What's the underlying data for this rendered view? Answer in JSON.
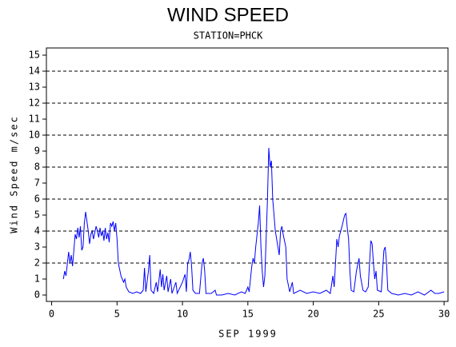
{
  "chart_data": {
    "type": "line",
    "title": "WIND SPEED",
    "subtitle": "STATION=PHCK",
    "x_label": "SEP 1999",
    "y_label": "Wind Speed m/sec",
    "xlim": [
      -0.4,
      30.3
    ],
    "xticks": [
      0,
      5,
      10,
      15,
      20,
      25,
      30
    ],
    "ylim": [
      -0.4,
      15.45
    ],
    "yticks": [
      0,
      1,
      2,
      3,
      4,
      5,
      6,
      7,
      8,
      9,
      10,
      11,
      12,
      13,
      14,
      15
    ],
    "gridlines": [
      2,
      4,
      6,
      8,
      10,
      12,
      14
    ],
    "grid_style": "dashed",
    "series": [
      {
        "color": "#0000ff",
        "x": [
          0.9,
          1.0,
          1.1,
          1.3,
          1.4,
          1.5,
          1.6,
          1.7,
          1.8,
          1.9,
          2.0,
          2.1,
          2.2,
          2.3,
          2.4,
          2.5,
          2.6,
          2.7,
          2.8,
          2.9,
          3.0,
          3.1,
          3.2,
          3.4,
          3.5,
          3.6,
          3.7,
          3.8,
          3.9,
          4.0,
          4.1,
          4.2,
          4.3,
          4.4,
          4.5,
          4.6,
          4.7,
          4.8,
          4.9,
          5.0,
          5.1,
          5.3,
          5.5,
          5.6,
          5.7,
          5.9,
          6.2,
          6.5,
          6.8,
          7.0,
          7.1,
          7.2,
          7.4,
          7.5,
          7.6,
          7.8,
          8.0,
          8.1,
          8.3,
          8.4,
          8.5,
          8.6,
          8.8,
          8.9,
          9.1,
          9.2,
          9.5,
          9.6,
          10.0,
          10.2,
          10.3,
          10.4,
          10.5,
          10.6,
          10.7,
          10.8,
          11.0,
          11.3,
          11.5,
          11.6,
          11.7,
          11.8,
          12.2,
          12.5,
          12.6,
          13.0,
          13.5,
          14.0,
          14.5,
          14.8,
          15.0,
          15.1,
          15.3,
          15.4,
          15.5,
          15.6,
          15.8,
          15.9,
          16.0,
          16.1,
          16.2,
          16.3,
          16.5,
          16.6,
          16.7,
          16.8,
          16.9,
          17.0,
          17.1,
          17.3,
          17.4,
          17.5,
          17.6,
          17.7,
          17.9,
          18.0,
          18.2,
          18.4,
          18.5,
          19.0,
          19.5,
          20.0,
          20.5,
          21.0,
          21.3,
          21.5,
          21.6,
          21.8,
          21.9,
          22.0,
          22.2,
          22.4,
          22.5,
          22.6,
          22.7,
          22.8,
          22.9,
          23.1,
          23.3,
          23.5,
          23.6,
          23.8,
          24.0,
          24.2,
          24.4,
          24.5,
          24.6,
          24.7,
          24.8,
          24.9,
          25.2,
          25.4,
          25.5,
          25.6,
          25.7,
          26.0,
          26.5,
          27.0,
          27.5,
          28.0,
          28.5,
          29.0,
          29.3,
          29.6,
          30.0
        ],
        "values": [
          1.0,
          1.5,
          1.2,
          2.7,
          2.0,
          2.5,
          1.8,
          2.8,
          3.8,
          3.5,
          4.2,
          3.6,
          4.3,
          2.8,
          3.0,
          4.5,
          5.2,
          4.6,
          4.0,
          3.2,
          3.8,
          4.0,
          3.5,
          4.3,
          4.0,
          3.6,
          4.2,
          3.7,
          4.0,
          3.4,
          4.2,
          3.5,
          3.9,
          3.3,
          4.5,
          4.3,
          4.6,
          4.0,
          4.5,
          3.5,
          2.0,
          1.2,
          0.8,
          1.0,
          0.5,
          0.2,
          0.1,
          0.2,
          0.1,
          0.3,
          1.7,
          0.2,
          1.5,
          2.5,
          0.3,
          0.1,
          0.8,
          0.2,
          1.6,
          0.5,
          1.3,
          0.3,
          1.2,
          0.2,
          1.0,
          0.1,
          0.8,
          0.1,
          0.8,
          1.3,
          0.2,
          2.0,
          2.2,
          2.7,
          1.8,
          0.3,
          0.1,
          0.1,
          2.0,
          2.3,
          1.5,
          0.1,
          0.1,
          0.3,
          0.0,
          0.0,
          0.1,
          0.0,
          0.2,
          0.1,
          0.5,
          0.2,
          1.8,
          2.3,
          2.0,
          3.0,
          4.5,
          5.6,
          3.0,
          1.5,
          0.5,
          1.2,
          6.0,
          9.2,
          8.0,
          8.4,
          6.0,
          5.0,
          4.0,
          3.0,
          2.5,
          4.0,
          4.3,
          3.8,
          3.0,
          1.0,
          0.2,
          0.8,
          0.1,
          0.3,
          0.1,
          0.2,
          0.1,
          0.3,
          0.1,
          1.2,
          0.5,
          3.5,
          3.0,
          3.7,
          4.3,
          5.0,
          5.1,
          4.2,
          3.5,
          1.5,
          0.3,
          0.2,
          1.5,
          2.3,
          1.2,
          0.3,
          0.2,
          0.5,
          3.4,
          3.2,
          2.0,
          1.0,
          1.5,
          0.3,
          0.2,
          2.8,
          3.0,
          2.0,
          0.3,
          0.1,
          0.0,
          0.1,
          0.0,
          0.2,
          0.0,
          0.3,
          0.1,
          0.1,
          0.2
        ]
      }
    ]
  }
}
